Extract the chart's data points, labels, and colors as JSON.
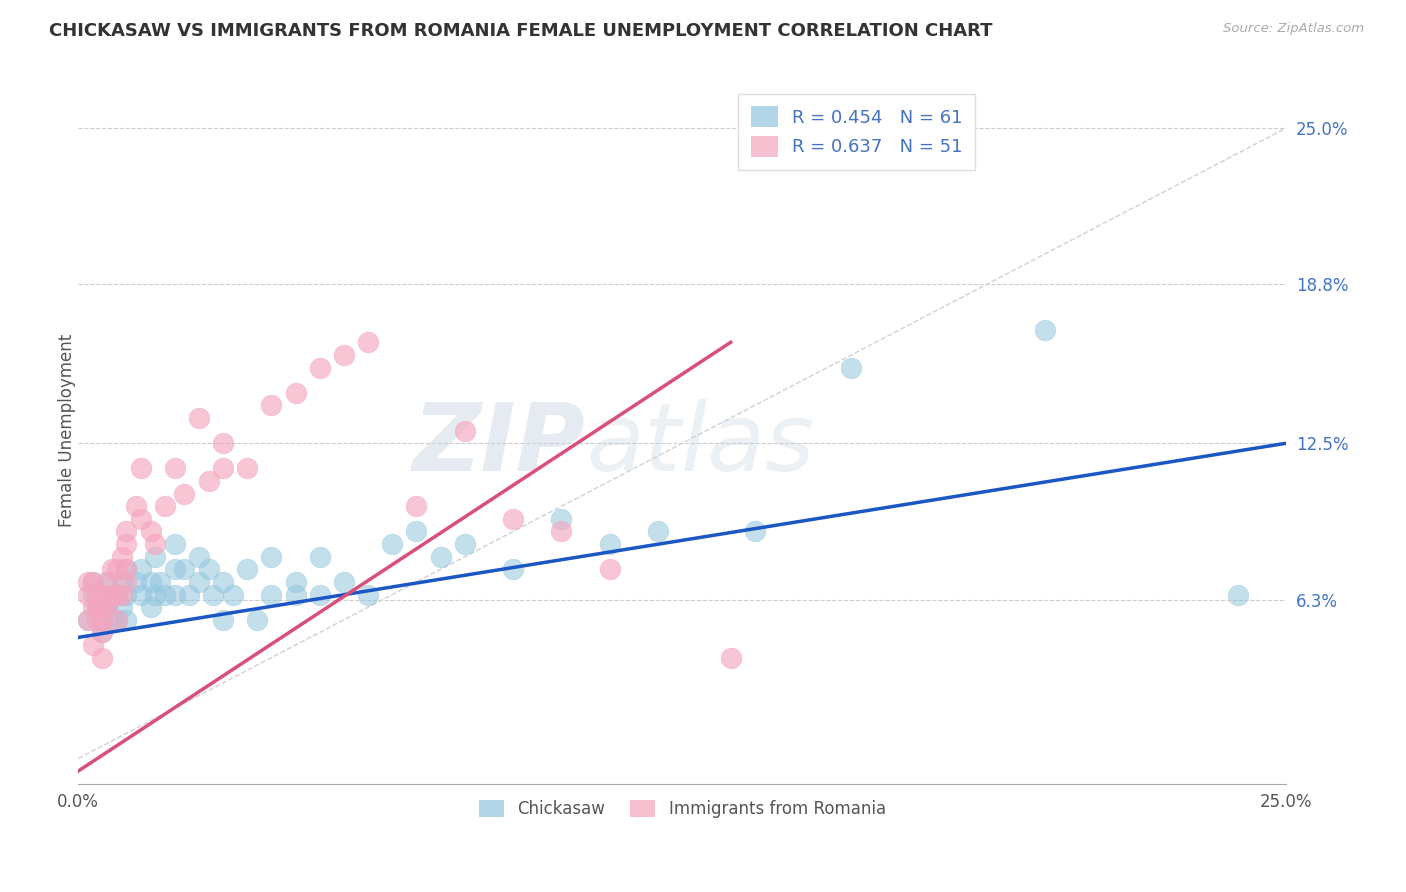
{
  "title": "CHICKASAW VS IMMIGRANTS FROM ROMANIA FEMALE UNEMPLOYMENT CORRELATION CHART",
  "source": "Source: ZipAtlas.com",
  "ylabel": "Female Unemployment",
  "ytick_labels": [
    "25.0%",
    "18.8%",
    "12.5%",
    "6.3%"
  ],
  "ytick_values": [
    0.25,
    0.188,
    0.125,
    0.063
  ],
  "xlim": [
    0.0,
    0.25
  ],
  "ylim": [
    -0.01,
    0.27
  ],
  "watermark_zip": "ZIP",
  "watermark_atlas": "atlas",
  "legend_r1": "R = 0.454",
  "legend_n1": "N = 61",
  "legend_r2": "R = 0.637",
  "legend_n2": "N = 51",
  "chickasaw_color": "#92c5de",
  "romania_color": "#f4a6be",
  "line1_color": "#1a56c4",
  "line2_color": "#d94f7a",
  "diagonal_color": "#d0d0d0",
  "chickasaw_scatter_x": [
    0.002,
    0.003,
    0.003,
    0.004,
    0.005,
    0.005,
    0.006,
    0.006,
    0.006,
    0.007,
    0.007,
    0.008,
    0.008,
    0.009,
    0.009,
    0.01,
    0.01,
    0.01,
    0.012,
    0.013,
    0.013,
    0.015,
    0.015,
    0.016,
    0.016,
    0.017,
    0.018,
    0.02,
    0.02,
    0.02,
    0.022,
    0.023,
    0.025,
    0.025,
    0.027,
    0.028,
    0.03,
    0.03,
    0.032,
    0.035,
    0.037,
    0.04,
    0.04,
    0.045,
    0.045,
    0.05,
    0.05,
    0.055,
    0.06,
    0.065,
    0.07,
    0.075,
    0.08,
    0.09,
    0.1,
    0.11,
    0.12,
    0.14,
    0.16,
    0.2,
    0.24
  ],
  "chickasaw_scatter_y": [
    0.055,
    0.065,
    0.07,
    0.06,
    0.055,
    0.05,
    0.06,
    0.06,
    0.07,
    0.055,
    0.065,
    0.055,
    0.065,
    0.06,
    0.07,
    0.055,
    0.065,
    0.075,
    0.07,
    0.065,
    0.075,
    0.06,
    0.07,
    0.065,
    0.08,
    0.07,
    0.065,
    0.065,
    0.075,
    0.085,
    0.075,
    0.065,
    0.07,
    0.08,
    0.075,
    0.065,
    0.055,
    0.07,
    0.065,
    0.075,
    0.055,
    0.065,
    0.08,
    0.065,
    0.07,
    0.065,
    0.08,
    0.07,
    0.065,
    0.085,
    0.09,
    0.08,
    0.085,
    0.075,
    0.095,
    0.085,
    0.09,
    0.09,
    0.155,
    0.17,
    0.065
  ],
  "romania_scatter_x": [
    0.002,
    0.002,
    0.002,
    0.003,
    0.003,
    0.003,
    0.004,
    0.004,
    0.004,
    0.005,
    0.005,
    0.005,
    0.005,
    0.005,
    0.006,
    0.006,
    0.007,
    0.007,
    0.008,
    0.008,
    0.008,
    0.009,
    0.009,
    0.01,
    0.01,
    0.01,
    0.01,
    0.012,
    0.013,
    0.013,
    0.015,
    0.016,
    0.018,
    0.02,
    0.022,
    0.025,
    0.027,
    0.03,
    0.03,
    0.035,
    0.04,
    0.045,
    0.05,
    0.055,
    0.06,
    0.07,
    0.08,
    0.09,
    0.1,
    0.11,
    0.135
  ],
  "romania_scatter_y": [
    0.055,
    0.065,
    0.07,
    0.06,
    0.07,
    0.045,
    0.055,
    0.06,
    0.065,
    0.05,
    0.055,
    0.06,
    0.065,
    0.04,
    0.06,
    0.07,
    0.065,
    0.075,
    0.055,
    0.065,
    0.075,
    0.065,
    0.08,
    0.07,
    0.075,
    0.085,
    0.09,
    0.1,
    0.095,
    0.115,
    0.09,
    0.085,
    0.1,
    0.115,
    0.105,
    0.135,
    0.11,
    0.115,
    0.125,
    0.115,
    0.14,
    0.145,
    0.155,
    0.16,
    0.165,
    0.1,
    0.13,
    0.095,
    0.09,
    0.075,
    0.04
  ],
  "line1_x": [
    0.0,
    0.25
  ],
  "line1_y": [
    0.048,
    0.125
  ],
  "line2_x": [
    0.0,
    0.135
  ],
  "line2_y": [
    -0.005,
    0.165
  ]
}
